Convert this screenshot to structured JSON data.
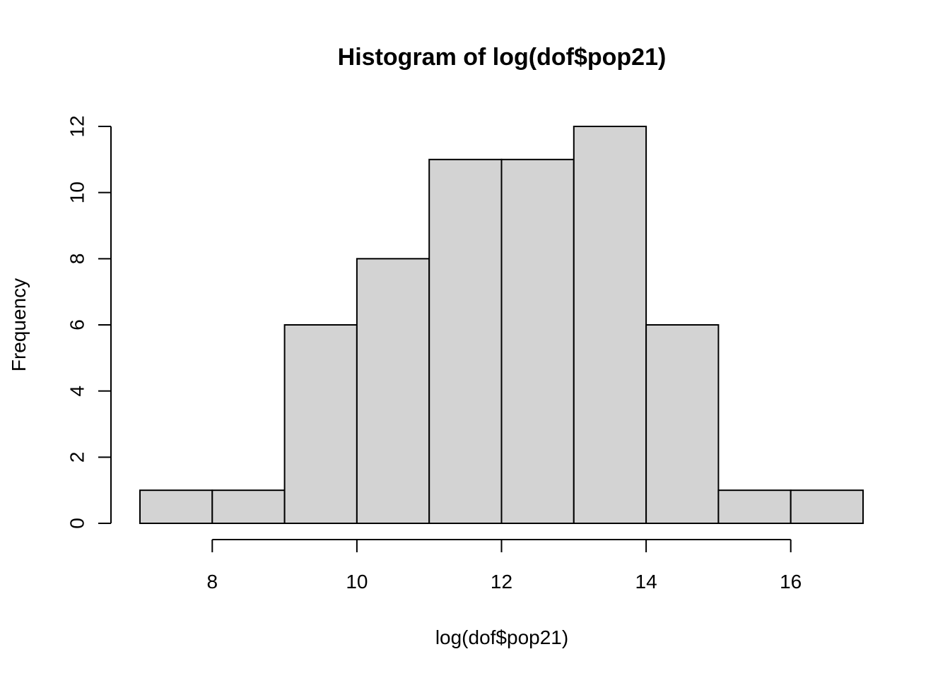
{
  "chart_data": {
    "type": "bar",
    "subtype": "histogram",
    "title": "Histogram of log(dof$pop21)",
    "xlabel": "log(dof$pop21)",
    "ylabel": "Frequency",
    "bins": [
      {
        "from": 7,
        "to": 8,
        "count": 1
      },
      {
        "from": 8,
        "to": 9,
        "count": 1
      },
      {
        "from": 9,
        "to": 10,
        "count": 6
      },
      {
        "from": 10,
        "to": 11,
        "count": 8
      },
      {
        "from": 11,
        "to": 12,
        "count": 11
      },
      {
        "from": 12,
        "to": 13,
        "count": 11
      },
      {
        "from": 13,
        "to": 14,
        "count": 12
      },
      {
        "from": 14,
        "to": 15,
        "count": 6
      },
      {
        "from": 15,
        "to": 16,
        "count": 1
      },
      {
        "from": 16,
        "to": 17,
        "count": 1
      }
    ],
    "xlim": [
      7,
      17
    ],
    "ylim": [
      0,
      12
    ],
    "x_ticks": [
      8,
      10,
      12,
      14,
      16
    ],
    "y_ticks": [
      0,
      2,
      4,
      6,
      8,
      10,
      12
    ],
    "x_axis_range": [
      8,
      16
    ],
    "bar_fill": "#d3d3d3",
    "bar_stroke": "#000000",
    "grid": false
  }
}
